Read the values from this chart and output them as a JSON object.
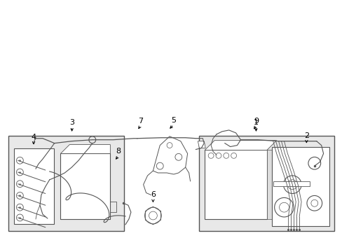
{
  "background_color": "#ffffff",
  "line_color": "#555555",
  "box_fill_color": "#e8e8e8",
  "figsize": [
    4.89,
    3.6
  ],
  "dpi": 100
}
